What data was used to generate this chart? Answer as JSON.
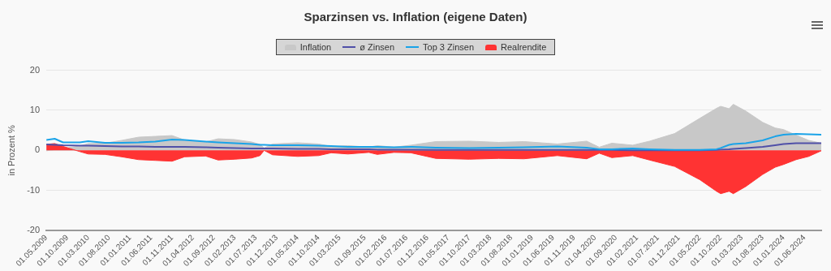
{
  "chart_data": {
    "type": "area",
    "title": "Sparzinsen vs. Inflation (eigene Daten)",
    "ylabel": "in Prozent %",
    "x": [
      "2009-05",
      "2009-07",
      "2009-09",
      "2010-01",
      "2010-03",
      "2010-07",
      "2010-11",
      "2011-03",
      "2011-07",
      "2011-11",
      "2012-02",
      "2012-07",
      "2012-10",
      "2013-02",
      "2013-06",
      "2013-08",
      "2013-09",
      "2013-11",
      "2014-05",
      "2014-10",
      "2015-01",
      "2015-05",
      "2015-10",
      "2015-12",
      "2016-04",
      "2016-08",
      "2017-02",
      "2017-10",
      "2018-05",
      "2018-11",
      "2019-07",
      "2020-02",
      "2020-05",
      "2020-08",
      "2021-01",
      "2021-05",
      "2021-11",
      "2022-05",
      "2022-09",
      "2022-10",
      "2022-12",
      "2023-01",
      "2023-04",
      "2023-08",
      "2023-11",
      "2024-01",
      "2024-04",
      "2024-07",
      "2024-10"
    ],
    "series": [
      {
        "name": "Inflation",
        "type": "area",
        "color": "#c8c8c8",
        "values": [
          -0.1,
          0.2,
          0.5,
          1.1,
          1.7,
          1.8,
          2.5,
          3.3,
          3.5,
          3.7,
          2.6,
          2.1,
          2.9,
          2.7,
          2.1,
          1.5,
          0.6,
          1.6,
          1.9,
          1.6,
          1.0,
          1.2,
          0.8,
          1.2,
          0.8,
          1.3,
          2.2,
          2.3,
          2.0,
          2.2,
          1.6,
          2.3,
          0.8,
          1.8,
          1.3,
          2.3,
          4.2,
          8.0,
          10.5,
          11.0,
          10.4,
          11.5,
          9.8,
          7.0,
          5.6,
          5.2,
          3.8,
          2.5,
          1.8
        ]
      },
      {
        "name": "ø Zinsen",
        "type": "line",
        "color": "#5050a8",
        "values": [
          1.5,
          1.4,
          1.3,
          1.2,
          1.2,
          1.1,
          1.0,
          1.0,
          0.9,
          0.9,
          0.9,
          0.8,
          0.7,
          0.6,
          0.5,
          0.5,
          0.5,
          0.5,
          0.4,
          0.4,
          0.3,
          0.3,
          0.3,
          0.2,
          0.2,
          0.2,
          0.1,
          0.1,
          0.1,
          0.1,
          0.1,
          0.1,
          0.1,
          0.1,
          0.0,
          0.0,
          0.0,
          0.0,
          0.1,
          0.2,
          0.3,
          0.4,
          0.6,
          0.9,
          1.3,
          1.6,
          1.8,
          1.8,
          1.8
        ]
      },
      {
        "name": "Top 3 Zinsen",
        "type": "line",
        "color": "#1aa3e8",
        "values": [
          2.6,
          2.9,
          2.0,
          2.0,
          2.3,
          1.9,
          1.9,
          2.0,
          2.2,
          2.7,
          2.6,
          2.2,
          2.0,
          1.8,
          1.6,
          1.4,
          1.4,
          1.3,
          1.3,
          1.2,
          1.1,
          0.9,
          0.9,
          0.9,
          0.8,
          0.9,
          0.7,
          0.6,
          0.7,
          0.8,
          1.0,
          0.7,
          0.3,
          0.3,
          0.5,
          0.3,
          0.1,
          0.1,
          0.3,
          0.6,
          1.4,
          1.6,
          1.8,
          2.5,
          3.5,
          3.9,
          4.1,
          4.0,
          3.9
        ]
      },
      {
        "name": "Realrendite",
        "type": "area",
        "color": "#ff3333",
        "values": [
          1.5,
          1.7,
          1.0,
          -0.3,
          -0.9,
          -1.0,
          -1.6,
          -2.3,
          -2.5,
          -2.7,
          -1.6,
          -1.4,
          -2.4,
          -2.2,
          -1.9,
          -1.3,
          0.0,
          -1.1,
          -1.5,
          -1.3,
          -0.6,
          -0.9,
          -0.5,
          -1.0,
          -0.5,
          -0.6,
          -2.0,
          -2.2,
          -2.0,
          -2.1,
          -1.3,
          -2.1,
          -0.7,
          -1.8,
          -1.3,
          -2.4,
          -4.0,
          -7.3,
          -10.2,
          -10.8,
          -10.2,
          -10.8,
          -9.0,
          -6.0,
          -4.2,
          -3.5,
          -2.3,
          -1.5,
          -0.1
        ]
      }
    ],
    "xlim": [
      "2009-05",
      "2024-10"
    ],
    "xticks": [
      {
        "value": "2009-05",
        "label": "01.05.2009"
      },
      {
        "value": "2009-10",
        "label": "01.10.2009"
      },
      {
        "value": "2010-03",
        "label": "01.03.2010"
      },
      {
        "value": "2010-08",
        "label": "01.08.2010"
      },
      {
        "value": "2011-01",
        "label": "01.01.2011"
      },
      {
        "value": "2011-06",
        "label": "01.06.2011"
      },
      {
        "value": "2011-11",
        "label": "01.11.2011"
      },
      {
        "value": "2012-04",
        "label": "01.04.2012"
      },
      {
        "value": "2012-09",
        "label": "01.09.2012"
      },
      {
        "value": "2013-02",
        "label": "01.02.2013"
      },
      {
        "value": "2013-07",
        "label": "01.07.2013"
      },
      {
        "value": "2013-12",
        "label": "01.12.2013"
      },
      {
        "value": "2014-05",
        "label": "01.05.2014"
      },
      {
        "value": "2014-10",
        "label": "01.10.2014"
      },
      {
        "value": "2015-03",
        "label": "01.03.2015"
      },
      {
        "value": "2015-09",
        "label": "01.09.2015"
      },
      {
        "value": "2016-02",
        "label": "01.02.2016"
      },
      {
        "value": "2016-07",
        "label": "01.07.2016"
      },
      {
        "value": "2016-12",
        "label": "01.12.2016"
      },
      {
        "value": "2017-05",
        "label": "01.05.2017"
      },
      {
        "value": "2017-10",
        "label": "01.10.2017"
      },
      {
        "value": "2018-03",
        "label": "01.03.2018"
      },
      {
        "value": "2018-08",
        "label": "01.08.2018"
      },
      {
        "value": "2019-01",
        "label": "01.01.2019"
      },
      {
        "value": "2019-06",
        "label": "01.06.2019"
      },
      {
        "value": "2019-11",
        "label": "01.11.2019"
      },
      {
        "value": "2020-04",
        "label": "01.04.2020"
      },
      {
        "value": "2020-09",
        "label": "01.09.2020"
      },
      {
        "value": "2021-02",
        "label": "01.02.2021"
      },
      {
        "value": "2021-07",
        "label": "01.07.2021"
      },
      {
        "value": "2021-12",
        "label": "01.12.2021"
      },
      {
        "value": "2022-05",
        "label": "01.05.2022"
      },
      {
        "value": "2022-10",
        "label": "01.10.2022"
      },
      {
        "value": "2023-03",
        "label": "01.03.2023"
      },
      {
        "value": "2023-08",
        "label": "01.08.2023"
      },
      {
        "value": "2024-01",
        "label": "01.01.2024"
      },
      {
        "value": "2024-06",
        "label": "01.06.2024"
      }
    ],
    "ylim": [
      -20,
      20
    ],
    "yticks": [
      -20,
      -10,
      0,
      10,
      20
    ],
    "grid": "y",
    "legend": "top"
  }
}
